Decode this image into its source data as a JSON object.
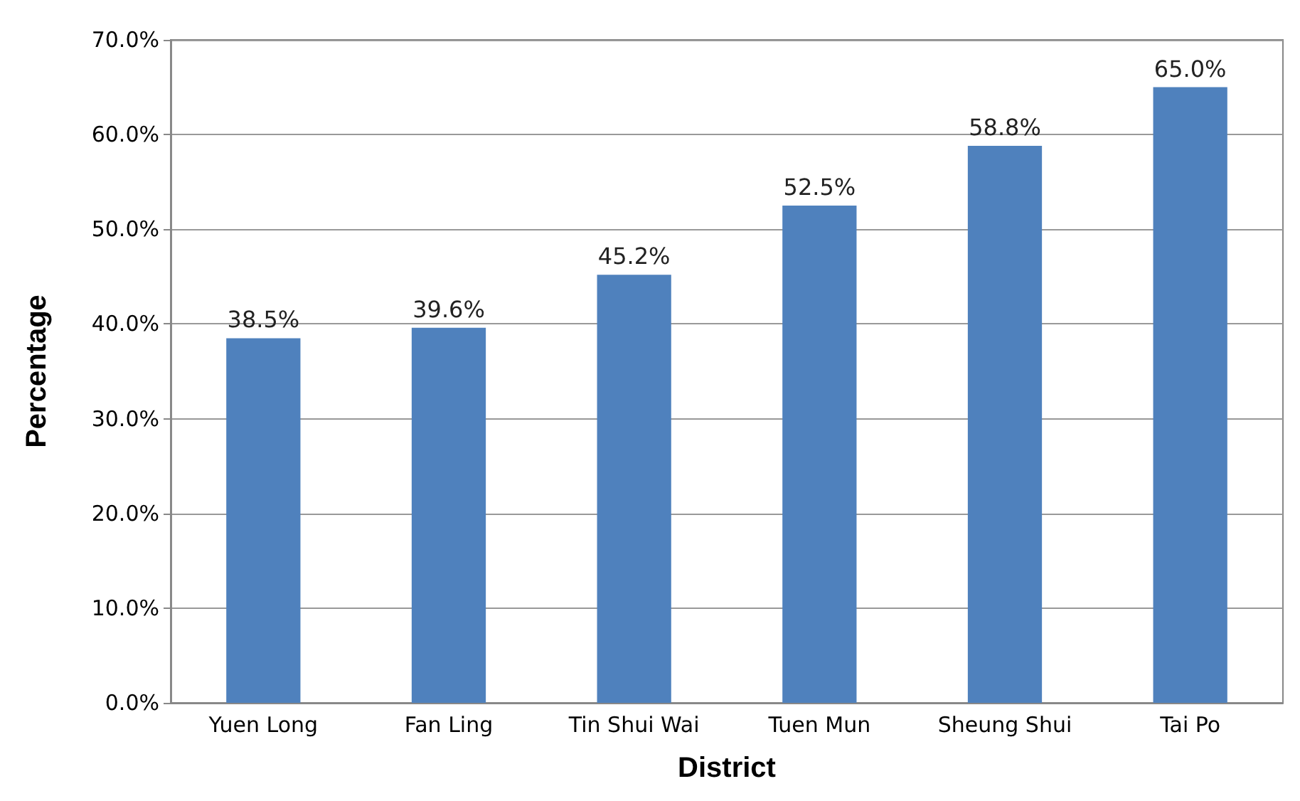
{
  "chart_data": {
    "type": "bar",
    "xlabel": "District",
    "ylabel": "Percentage",
    "categories": [
      "Yuen Long",
      "Fan Ling",
      "Tin Shui Wai",
      "Tuen Mun",
      "Sheung Shui",
      "Tai Po"
    ],
    "values": [
      38.5,
      39.6,
      45.2,
      52.5,
      58.8,
      65.0
    ],
    "value_labels": [
      "38.5%",
      "39.6%",
      "45.2%",
      "52.5%",
      "58.8%",
      "65.0%"
    ],
    "color": "#4f81bd",
    "ylim": [
      0,
      70
    ],
    "yticks": [
      {
        "value": 0,
        "label": "0.0%"
      },
      {
        "value": 10,
        "label": "10.0%"
      },
      {
        "value": 20,
        "label": "20.0%"
      },
      {
        "value": 30,
        "label": "30.0%"
      },
      {
        "value": 40,
        "label": "40.0%"
      },
      {
        "value": 50,
        "label": "50.0%"
      },
      {
        "value": 60,
        "label": "60.0%"
      },
      {
        "value": 70,
        "label": "70.0%"
      }
    ],
    "grid": "y"
  }
}
